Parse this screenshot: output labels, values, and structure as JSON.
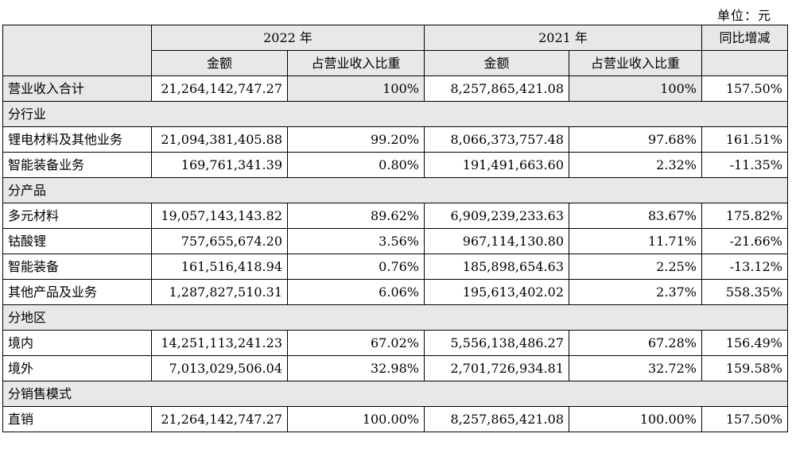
{
  "unit_label": "单位：元",
  "header": {
    "year_2022": "2022 年",
    "year_2021": "2021 年",
    "yoy_change": "同比增减",
    "amount": "金额",
    "share": "占营业收入比重"
  },
  "total_row": {
    "label": "营业收入合计",
    "amount_2022": "21,264,142,747.27",
    "share_2022": "100%",
    "amount_2021": "8,257,865,421.08",
    "share_2021": "100%",
    "yoy": "157.50%"
  },
  "sections": [
    {
      "title": "分行业",
      "rows": [
        {
          "label": "锂电材料及其他业务",
          "amount_2022": "21,094,381,405.88",
          "share_2022": "99.20%",
          "amount_2021": "8,066,373,757.48",
          "share_2021": "97.68%",
          "yoy": "161.51%"
        },
        {
          "label": "智能装备业务",
          "amount_2022": "169,761,341.39",
          "share_2022": "0.80%",
          "amount_2021": "191,491,663.60",
          "share_2021": "2.32%",
          "yoy": "-11.35%"
        }
      ]
    },
    {
      "title": "分产品",
      "rows": [
        {
          "label": "多元材料",
          "amount_2022": "19,057,143,143.82",
          "share_2022": "89.62%",
          "amount_2021": "6,909,239,233.63",
          "share_2021": "83.67%",
          "yoy": "175.82%"
        },
        {
          "label": "钴酸锂",
          "amount_2022": "757,655,674.20",
          "share_2022": "3.56%",
          "amount_2021": "967,114,130.80",
          "share_2021": "11.71%",
          "yoy": "-21.66%"
        },
        {
          "label": "智能装备",
          "amount_2022": "161,516,418.94",
          "share_2022": "0.76%",
          "amount_2021": "185,898,654.63",
          "share_2021": "2.25%",
          "yoy": "-13.12%"
        },
        {
          "label": "其他产品及业务",
          "amount_2022": "1,287,827,510.31",
          "share_2022": "6.06%",
          "amount_2021": "195,613,402.02",
          "share_2021": "2.37%",
          "yoy": "558.35%"
        }
      ]
    },
    {
      "title": "分地区",
      "rows": [
        {
          "label": "境内",
          "amount_2022": "14,251,113,241.23",
          "share_2022": "67.02%",
          "amount_2021": "5,556,138,486.27",
          "share_2021": "67.28%",
          "yoy": "156.49%"
        },
        {
          "label": "境外",
          "amount_2022": "7,013,029,506.04",
          "share_2022": "32.98%",
          "amount_2021": "2,701,726,934.81",
          "share_2021": "32.72%",
          "yoy": "159.58%"
        }
      ]
    },
    {
      "title": "分销售模式",
      "rows": [
        {
          "label": "直销",
          "amount_2022": "21,264,142,747.27",
          "share_2022": "100.00%",
          "amount_2021": "8,257,865,421.08",
          "share_2021": "100.00%",
          "yoy": "157.50%"
        }
      ]
    }
  ]
}
